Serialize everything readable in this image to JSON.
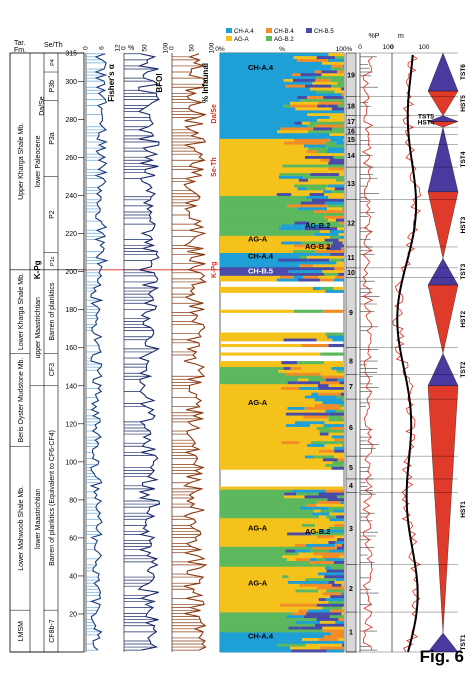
{
  "figure": {
    "label": "Fig. 6",
    "headers": {
      "fm": "Fm.",
      "tar": "Tar.",
      "se_th": "Se/Th",
      "da_se": "Da/Se"
    },
    "formations": [
      {
        "name": "LMSM",
        "from": 0,
        "to": 22
      },
      {
        "name": "Lower Mahwoob Shale Mb.",
        "from": 22,
        "to": 108
      },
      {
        "name": "Beris Oyster Mudstone Mb.",
        "from": 108,
        "to": 157
      },
      {
        "name": "Lower Kharga Shale Mb.",
        "from": 157,
        "to": 201
      },
      {
        "name": "Upper Kharga Shale Mb.",
        "from": 201,
        "to": 315
      }
    ],
    "stages": [
      {
        "name": "lower Maastrichtian",
        "from": 0,
        "to": 140
      },
      {
        "name": "upper Maastrichtian",
        "from": 140,
        "to": 201
      },
      {
        "name": "lower Paleocene",
        "from": 201,
        "to": 315
      }
    ],
    "zones": [
      {
        "name": "CF8b-7",
        "from": 0,
        "to": 22
      },
      {
        "name": "Barren of planktics (Equivalent to CF6-CF4)",
        "from": 22,
        "to": 140
      },
      {
        "name": "CF3",
        "from": 140,
        "to": 157
      },
      {
        "name": "Barren of planktics",
        "from": 157,
        "to": 201
      },
      {
        "name": "P1c",
        "from": 201,
        "to": 210
      },
      {
        "name": "P2",
        "from": 210,
        "to": 250
      },
      {
        "name": "P3a",
        "from": 250,
        "to": 290
      },
      {
        "name": "P3b",
        "from": 290,
        "to": 305
      },
      {
        "name": "P4",
        "from": 305,
        "to": 315
      }
    ],
    "kpg_label": "K-Pg",
    "kpg_depth": 201,
    "depth_ticks": [
      "20",
      "40",
      "60",
      "80",
      "100",
      "120",
      "140",
      "160",
      "180",
      "200",
      "220",
      "240",
      "260",
      "280",
      "300",
      "315"
    ],
    "panels": [
      {
        "key": "fisher",
        "title": "Fisher's α",
        "ticks": [
          "0",
          "6",
          "12"
        ],
        "color": "#1a3a7a",
        "bar_color": "#6aa8d8"
      },
      {
        "key": "bfoi",
        "title": "BFOI",
        "unit": "%",
        "ticks": [
          "0",
          "50",
          "100"
        ],
        "color": "#1a2a6a",
        "bar_color": "#1a2a6a"
      },
      {
        "key": "infaunal",
        "title": "% Infaunal",
        "ticks": [
          "0",
          "50",
          "100"
        ],
        "color": "#8a3a10",
        "bar_color": "#8a3a10"
      }
    ],
    "red_labels": {
      "se_th": "Se-Th",
      "da_se": "Da/Se",
      "kpg": "K-Pg"
    },
    "pct_axis": [
      "0%",
      "%",
      "100%"
    ],
    "legend": [
      "CH-A.4",
      "CH-B.4",
      "CH-B.5",
      "AG-A",
      "AG-B.2"
    ],
    "colors": {
      "CH-A.4": "#1e9fd6",
      "CH-B.4": "#f28c28",
      "CH-B.5": "#4a4aa8",
      "AG-A": "#f5c21b",
      "AG-B.2": "#5cb85c",
      "blank": "#ffffff",
      "hst": "#e03a2a",
      "tst": "#4a3aa0",
      "curve": "#e02a1a"
    },
    "assemblage_labels": [
      {
        "text": "CH-A.4",
        "depth": 306
      },
      {
        "text": "AG-B.2",
        "depth": 223
      },
      {
        "text": "AG-A",
        "depth": 216
      },
      {
        "text": "AG-B.2",
        "depth": 212
      },
      {
        "text": "CH-A.4",
        "depth": 207
      },
      {
        "text": "CH-B.5",
        "depth": 199
      },
      {
        "text": "AG-A",
        "depth": 130
      },
      {
        "text": "AG-A",
        "depth": 64
      },
      {
        "text": "AG-B.2",
        "depth": 62
      },
      {
        "text": "AG-A",
        "depth": 35
      },
      {
        "text": "CH-A.4",
        "depth": 7
      }
    ],
    "intervals": [
      "1",
      "2",
      "3",
      "4",
      "5",
      "6",
      "7",
      "8",
      "9",
      "10",
      "11",
      "12",
      "13",
      "14",
      "15",
      "16",
      "17",
      "18",
      "19"
    ],
    "interval_bounds": [
      0,
      21,
      46,
      84,
      91,
      103,
      133,
      146,
      160,
      197,
      202,
      213,
      238,
      255,
      267,
      272,
      276,
      282,
      292,
      315
    ],
    "p_axis": {
      "title": "%P",
      "ticks": [
        "0",
        "100"
      ]
    },
    "m_axis": {
      "title": "m",
      "ticks": [
        "0",
        "100"
      ]
    },
    "systems_tracts": [
      {
        "name": "TST1",
        "type": "tst",
        "from": 0,
        "to": 10
      },
      {
        "name": "HST1",
        "type": "hst",
        "from": 10,
        "to": 140
      },
      {
        "name": "TST2",
        "type": "tst",
        "from": 140,
        "to": 157
      },
      {
        "name": "HST2",
        "type": "hst",
        "from": 157,
        "to": 193
      },
      {
        "name": "TST3",
        "type": "tst",
        "from": 193,
        "to": 207
      },
      {
        "name": "HST3",
        "type": "hst",
        "from": 207,
        "to": 242
      },
      {
        "name": "TST4",
        "type": "tst",
        "from": 242,
        "to": 276
      },
      {
        "name": "HST4",
        "type": "hst",
        "from": 276,
        "to": 279
      },
      {
        "name": "TST5",
        "type": "tst",
        "from": 279,
        "to": 282
      },
      {
        "name": "HST5",
        "type": "hst",
        "from": 282,
        "to": 295
      },
      {
        "name": "TST6",
        "type": "tst",
        "from": 295,
        "to": 315
      }
    ]
  }
}
